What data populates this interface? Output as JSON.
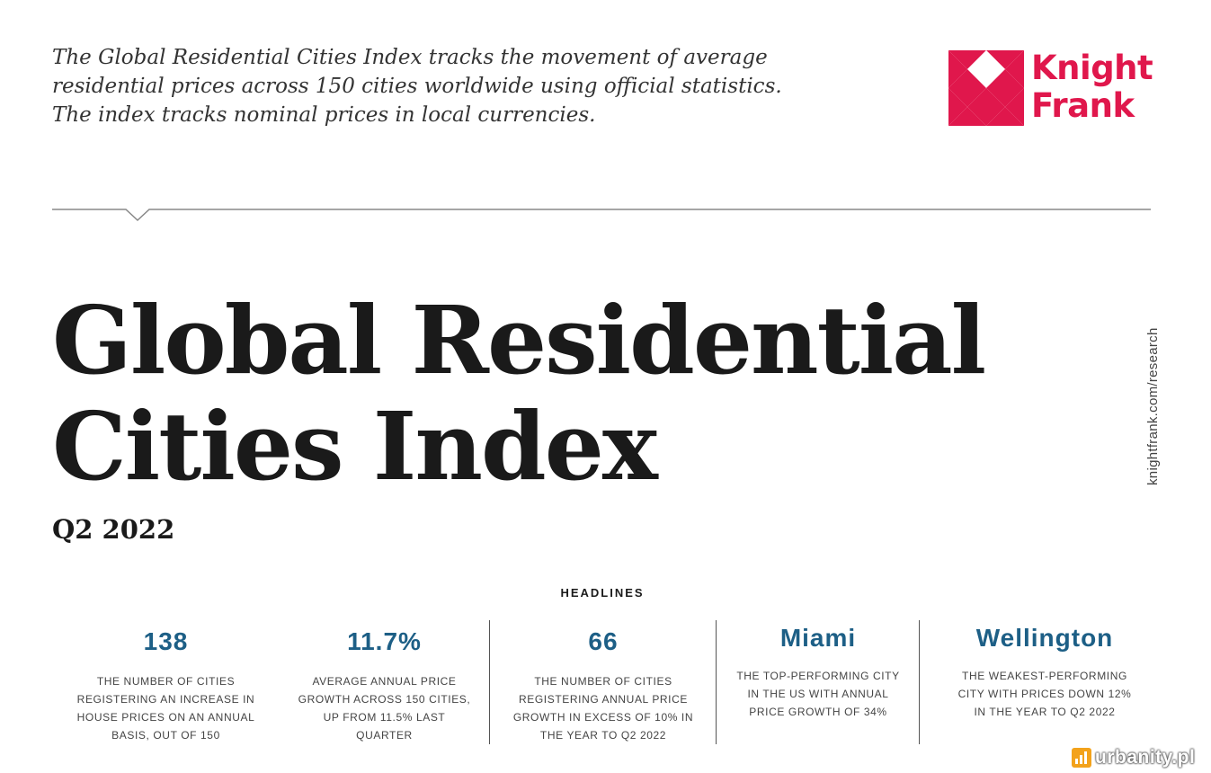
{
  "intro_text": "The Global Residential Cities Index tracks the movement of average residential prices across 150 cities worldwide using official statistics. The index tracks nominal prices in local currencies.",
  "logo": {
    "line1": "Knight",
    "line2": "Frank",
    "color": "#e0174c"
  },
  "title": {
    "line1": "Global Residential",
    "line2": "Cities Index"
  },
  "period": "Q2 2022",
  "side_url": "knightfrank.com/research",
  "headlines_label": "HEADLINES",
  "accent_color": "#1d5f86",
  "stats": [
    {
      "value": "138",
      "desc": "THE NUMBER OF CITIES REGISTERING AN INCREASE IN HOUSE PRICES ON AN ANNUAL BASIS, OUT OF 150"
    },
    {
      "value": "11.7%",
      "desc": "AVERAGE ANNUAL PRICE GROWTH ACROSS 150 CITIES, UP FROM 11.5% LAST QUARTER"
    },
    {
      "value": "66",
      "desc": "THE NUMBER OF CITIES REGISTERING ANNUAL PRICE GROWTH IN EXCESS OF 10% IN THE YEAR TO Q2 2022"
    },
    {
      "value": "Miami",
      "desc": "THE TOP-PERFORMING CITY IN THE US WITH ANNUAL PRICE GROWTH OF 34%"
    },
    {
      "value": "Wellington",
      "desc": "THE WEAKEST-PERFORMING CITY WITH PRICES DOWN 12% IN THE YEAR TO Q2 2022"
    }
  ],
  "watermark": {
    "text": "urbanity.pl",
    "icon": "bar-chart-icon"
  }
}
